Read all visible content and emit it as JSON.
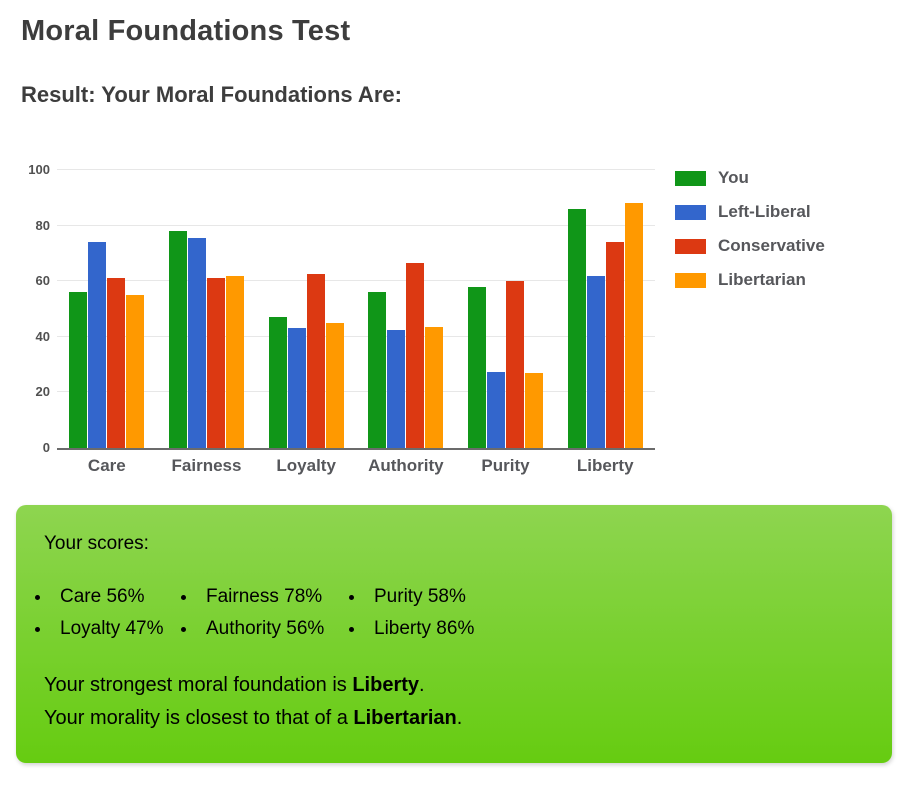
{
  "header": {
    "title": "Moral Foundations Test",
    "subtitle": "Result: Your Moral Foundations Are:"
  },
  "chart_data": {
    "type": "bar",
    "categories": [
      "Care",
      "Fairness",
      "Loyalty",
      "Authority",
      "Purity",
      "Liberty"
    ],
    "series": [
      {
        "name": "You",
        "color": "#109618",
        "values": [
          56,
          78,
          47,
          56,
          58,
          86
        ]
      },
      {
        "name": "Left-Liberal",
        "color": "#3366cc",
        "values": [
          74,
          75.5,
          43,
          42.5,
          27.5,
          62
        ]
      },
      {
        "name": "Conservative",
        "color": "#dc3912",
        "values": [
          61,
          61,
          62.5,
          66.5,
          60,
          74
        ]
      },
      {
        "name": "Libertarian",
        "color": "#ff9900",
        "values": [
          55,
          62,
          45,
          43.5,
          27,
          88
        ]
      }
    ],
    "title": "",
    "xlabel": "",
    "ylabel": "",
    "ylim": [
      0,
      100
    ],
    "yticks": [
      0,
      20,
      40,
      60,
      80,
      100
    ],
    "grid": true,
    "legend_position": "right"
  },
  "result_box": {
    "scores_heading": "Your scores:",
    "score_columns": [
      [
        "Care 56%",
        "Loyalty 47%"
      ],
      [
        "Fairness 78%",
        "Authority 56%"
      ],
      [
        "Purity 58%",
        "Liberty 86%"
      ]
    ],
    "strongest_prefix": "Your strongest moral foundation is ",
    "strongest_value": "Liberty",
    "strongest_suffix": ".",
    "closest_prefix": "Your morality is closest to that of a ",
    "closest_value": "Libertarian",
    "closest_suffix": "."
  },
  "colors": {
    "heading_text": "#3d3d3d",
    "axis_text": "#56575b",
    "gridline": "#e7e7e7",
    "axis_line": "#6b6b6b",
    "box_gradient_top": "#8ed550",
    "box_gradient_bottom": "#66cc11"
  }
}
